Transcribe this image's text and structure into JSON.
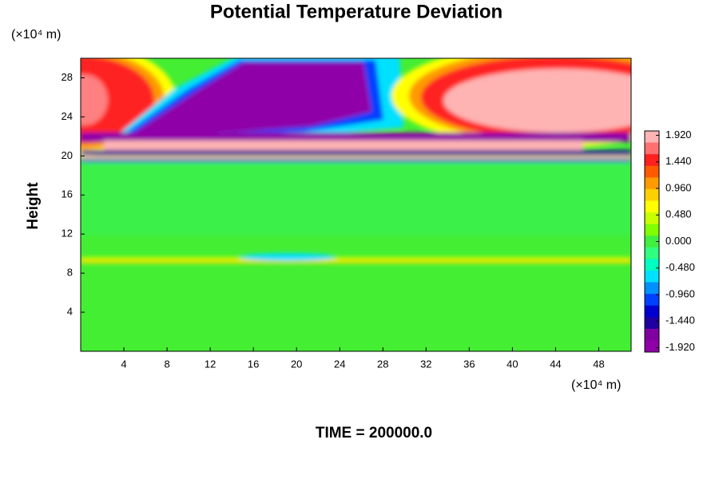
{
  "chart_data": {
    "type": "contour",
    "title": "Potential Temperature Deviation",
    "y_label": "Height",
    "y_unit": "(×10⁴ m)",
    "x_unit": "(×10⁴ m)",
    "time_label": "TIME = 200000.0",
    "xlim": [
      0,
      51
    ],
    "xticks": [
      4,
      8,
      12,
      16,
      20,
      24,
      28,
      32,
      36,
      40,
      44,
      48
    ],
    "ylim": [
      0,
      30
    ],
    "yticks": [
      4,
      8,
      12,
      16,
      20,
      24,
      28
    ],
    "clim": [
      -2,
      2
    ],
    "cticks": [
      {
        "value": 1.92,
        "label": "1.920"
      },
      {
        "value": 1.44,
        "label": "1.440"
      },
      {
        "value": 0.96,
        "label": "0.960"
      },
      {
        "value": 0.48,
        "label": "0.480"
      },
      {
        "value": 0,
        "label": "0.000"
      },
      {
        "value": -0.48,
        "label": "-0.480"
      },
      {
        "value": -0.96,
        "label": "-0.960"
      },
      {
        "value": -1.44,
        "label": "-1.440"
      },
      {
        "value": -1.92,
        "label": "-1.920"
      }
    ],
    "colormap": [
      "#ffb4b4",
      "#ff7070",
      "#ff2020",
      "#ff5a00",
      "#ff9a00",
      "#ffd000",
      "#ffff00",
      "#c8ff00",
      "#80ff00",
      "#40f040",
      "#30ff80",
      "#00ffc0",
      "#00e0ff",
      "#0090ff",
      "#0040ff",
      "#0000d0",
      "#2000a0",
      "#8000a0",
      "#9000a8"
    ]
  }
}
